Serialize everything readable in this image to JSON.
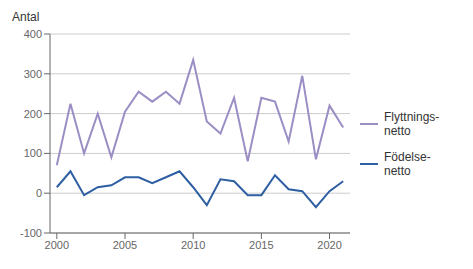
{
  "chart_data": {
    "type": "line",
    "ylabel": "Antal",
    "x": [
      2000,
      2001,
      2002,
      2003,
      2004,
      2005,
      2006,
      2007,
      2008,
      2009,
      2010,
      2011,
      2012,
      2013,
      2014,
      2015,
      2016,
      2017,
      2018,
      2019,
      2020,
      2021
    ],
    "series": [
      {
        "name": "Flyttnings-\nnetto",
        "color": "#9b8ec4",
        "values": [
          70,
          225,
          100,
          200,
          90,
          205,
          255,
          230,
          255,
          225,
          335,
          180,
          150,
          240,
          80,
          240,
          230,
          130,
          295,
          85,
          220,
          165
        ]
      },
      {
        "name": "Födelse-\nnetto",
        "color": "#2e5fa3",
        "values": [
          15,
          55,
          -5,
          15,
          20,
          40,
          40,
          25,
          40,
          55,
          15,
          -30,
          35,
          30,
          -5,
          -5,
          45,
          10,
          5,
          -35,
          5,
          30
        ]
      }
    ],
    "xlim": [
      1999.5,
      2021.5
    ],
    "xticks": [
      2000,
      2005,
      2010,
      2015,
      2020
    ],
    "ylim": [
      -100,
      400
    ],
    "yticks": [
      -100,
      0,
      100,
      200,
      300,
      400
    ],
    "grid": "y",
    "legend": "right"
  }
}
